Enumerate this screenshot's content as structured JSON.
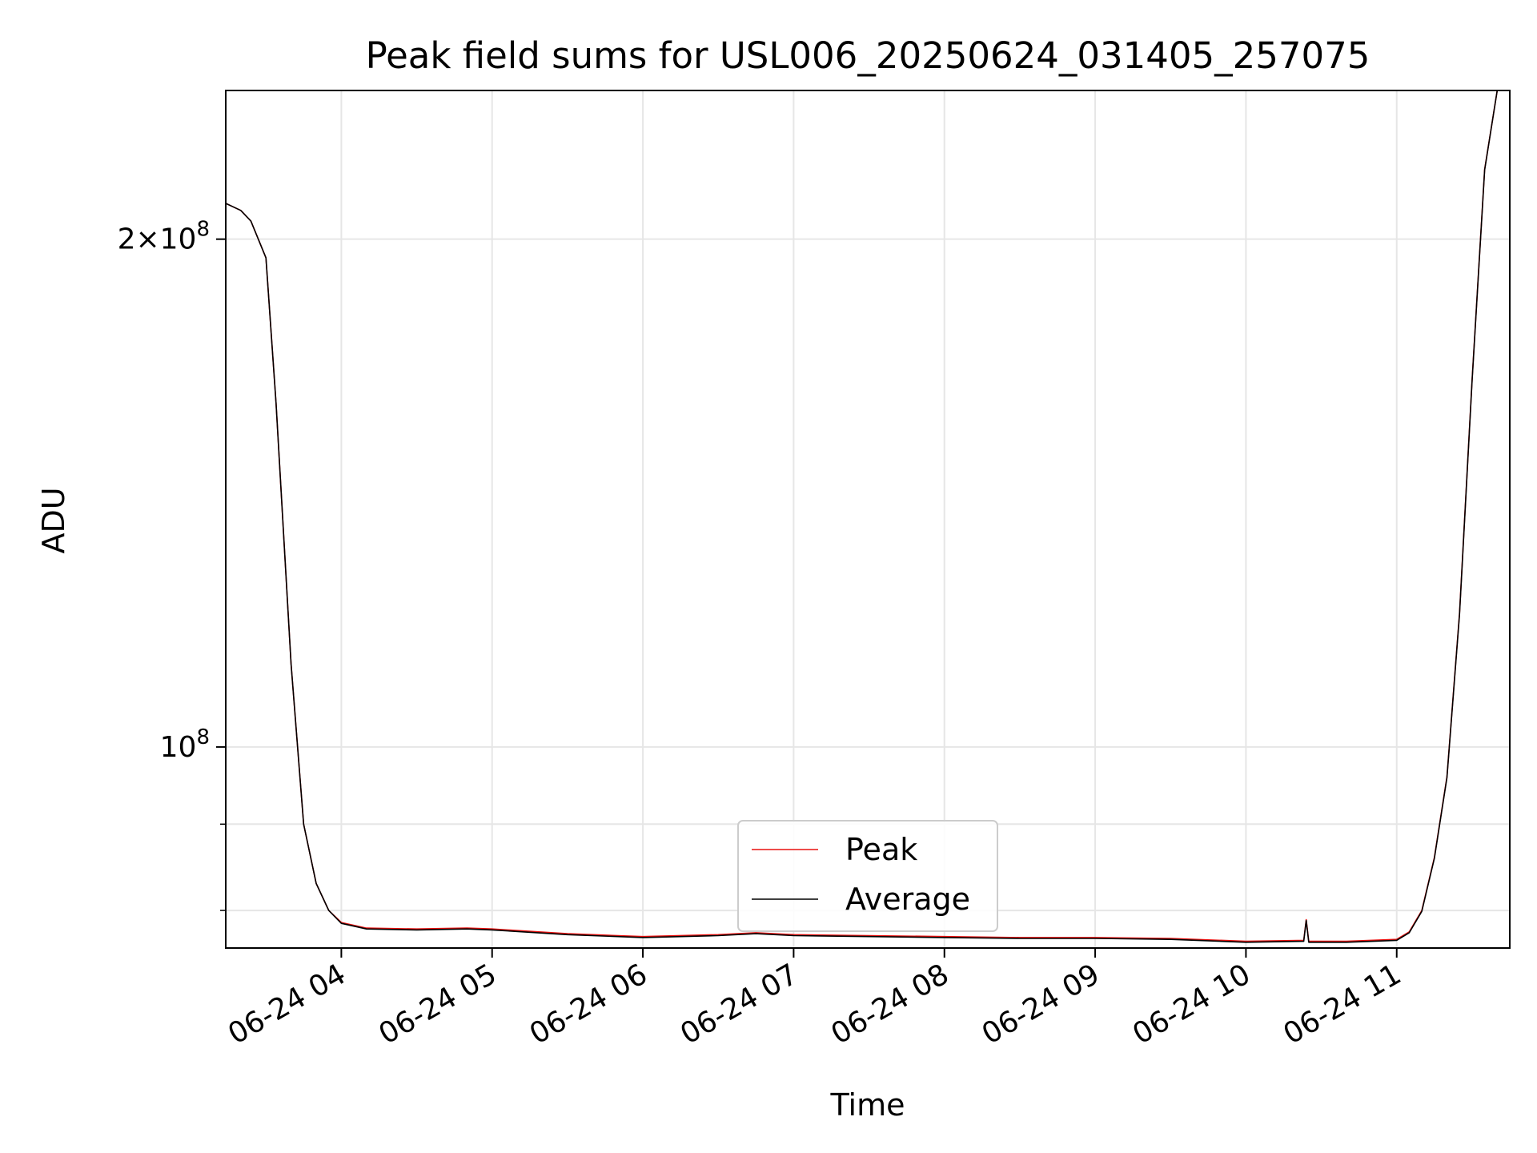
{
  "chart_data": {
    "type": "line",
    "title": "Peak field sums for USL006_20250624_031405_257075",
    "xlabel": "Time",
    "ylabel": "ADU",
    "yscale": "log",
    "grid": true,
    "legend_position": "lower center",
    "xlim": [
      "2025-06-24 03:14",
      "2025-06-24 11:45"
    ],
    "ylim": [
      76000000,
      245000000
    ],
    "x_ticks": [
      "06-24 04",
      "06-24 05",
      "06-24 06",
      "06-24 07",
      "06-24 08",
      "06-24 09",
      "06-24 10",
      "06-24 11"
    ],
    "y_ticks": [
      {
        "value": 100000000,
        "label": "10^8"
      },
      {
        "value": 200000000,
        "label": "2×10^8"
      }
    ],
    "y_minor_ticks": [
      80000000,
      90000000
    ],
    "x": [
      "2025-06-24 03:14",
      "2025-06-24 03:20",
      "2025-06-24 03:24",
      "2025-06-24 03:30",
      "2025-06-24 03:34",
      "2025-06-24 03:40",
      "2025-06-24 03:45",
      "2025-06-24 03:50",
      "2025-06-24 03:55",
      "2025-06-24 04:00",
      "2025-06-24 04:10",
      "2025-06-24 04:30",
      "2025-06-24 04:50",
      "2025-06-24 05:00",
      "2025-06-24 05:30",
      "2025-06-24 06:00",
      "2025-06-24 06:30",
      "2025-06-24 06:45",
      "2025-06-24 07:00",
      "2025-06-24 07:30",
      "2025-06-24 08:00",
      "2025-06-24 08:30",
      "2025-06-24 09:00",
      "2025-06-24 09:30",
      "2025-06-24 10:00",
      "2025-06-24 10:23",
      "2025-06-24 10:24",
      "2025-06-24 10:25",
      "2025-06-24 10:40",
      "2025-06-24 11:00",
      "2025-06-24 11:05",
      "2025-06-24 11:10",
      "2025-06-24 11:15",
      "2025-06-24 11:20",
      "2025-06-24 11:25",
      "2025-06-24 11:30",
      "2025-06-24 11:35",
      "2025-06-24 11:40"
    ],
    "series": [
      {
        "name": "Peak",
        "color": "#e8110f",
        "values": [
          210000000,
          208000000,
          205000000,
          195000000,
          160000000,
          112000000,
          90000000,
          83000000,
          80000000,
          78700000,
          78100000,
          78000000,
          78100000,
          78000000,
          77500000,
          77200000,
          77400000,
          77600000,
          77400000,
          77300000,
          77200000,
          77100000,
          77100000,
          77000000,
          76700000,
          76800000,
          79000000,
          76700000,
          76700000,
          76900000,
          77700000,
          80000000,
          86000000,
          96000000,
          120000000,
          165000000,
          220000000,
          245000000
        ]
      },
      {
        "name": "Average",
        "color": "#000000",
        "values": [
          210000000,
          208000000,
          205000000,
          195000000,
          160000000,
          112000000,
          90000000,
          83000000,
          80000000,
          78600000,
          78000000,
          77900000,
          78000000,
          77900000,
          77400000,
          77100000,
          77300000,
          77500000,
          77300000,
          77200000,
          77100000,
          77000000,
          77000000,
          76900000,
          76600000,
          76700000,
          78900000,
          76600000,
          76600000,
          76800000,
          77600000,
          79900000,
          85900000,
          95900000,
          119800000,
          164800000,
          219800000,
          245000000
        ]
      }
    ]
  }
}
